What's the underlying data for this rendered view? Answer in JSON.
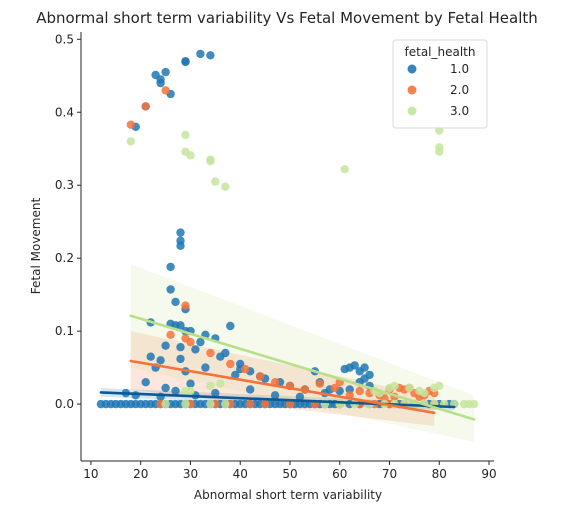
{
  "chart_data": {
    "type": "scatter",
    "title": "Abnormal short term variability Vs Fetal Movement by Fetal Health",
    "xlabel": "Abnormal short term variability",
    "ylabel": "Fetal Movement",
    "xlim": [
      8,
      91
    ],
    "ylim": [
      -0.078,
      0.51
    ],
    "xticks": [
      10,
      20,
      30,
      40,
      50,
      60,
      70,
      80,
      90
    ],
    "yticks": [
      0.0,
      0.1,
      0.2,
      0.3,
      0.4,
      0.5
    ],
    "ytick_labels": [
      "0.0",
      "0.1",
      "0.2",
      "0.3",
      "0.4",
      "0.5"
    ],
    "grid": false,
    "legend": {
      "title": "fetal_health",
      "placement": "top-right"
    },
    "series": [
      {
        "name": "1.0",
        "color": "#1f77b4",
        "points": [
          [
            21,
            0.408
          ],
          [
            19,
            0.38
          ],
          [
            23,
            0.451
          ],
          [
            24,
            0.445
          ],
          [
            24,
            0.44
          ],
          [
            25,
            0.455
          ],
          [
            26,
            0.425
          ],
          [
            29,
            0.469
          ],
          [
            29,
            0.47
          ],
          [
            32,
            0.48
          ],
          [
            34,
            0.478
          ],
          [
            28,
            0.235
          ],
          [
            28,
            0.224
          ],
          [
            28,
            0.217
          ],
          [
            26,
            0.188
          ],
          [
            26,
            0.157
          ],
          [
            27,
            0.14
          ],
          [
            29,
            0.13
          ],
          [
            22,
            0.112
          ],
          [
            26,
            0.11
          ],
          [
            27,
            0.108
          ],
          [
            28,
            0.108
          ],
          [
            38,
            0.107
          ],
          [
            29,
            0.1
          ],
          [
            30,
            0.1
          ],
          [
            33,
            0.095
          ],
          [
            35,
            0.09
          ],
          [
            32,
            0.085
          ],
          [
            25,
            0.08
          ],
          [
            28,
            0.078
          ],
          [
            31,
            0.075
          ],
          [
            37,
            0.07
          ],
          [
            22,
            0.065
          ],
          [
            24,
            0.06
          ],
          [
            28,
            0.062
          ],
          [
            36,
            0.065
          ],
          [
            40,
            0.055
          ],
          [
            23,
            0.05
          ],
          [
            29,
            0.045
          ],
          [
            33,
            0.05
          ],
          [
            40,
            0.048
          ],
          [
            42,
            0.045
          ],
          [
            45,
            0.035
          ],
          [
            44,
            0.038
          ],
          [
            39,
            0.04
          ],
          [
            48,
            0.03
          ],
          [
            50,
            0.025
          ],
          [
            53,
            0.02
          ],
          [
            55,
            0.045
          ],
          [
            61,
            0.048
          ],
          [
            62,
            0.05
          ],
          [
            63,
            0.053
          ],
          [
            64,
            0.045
          ],
          [
            65,
            0.05
          ],
          [
            66,
            0.04
          ],
          [
            65,
            0.035
          ],
          [
            58,
            0.02
          ],
          [
            60,
            0.018
          ],
          [
            21,
            0.03
          ],
          [
            25,
            0.022
          ],
          [
            30,
            0.028
          ],
          [
            35,
            0.015
          ],
          [
            42,
            0.02
          ],
          [
            47,
            0.012
          ],
          [
            52,
            0.01
          ],
          [
            57,
            0.015
          ],
          [
            62,
            0.02
          ],
          [
            64,
            0.03
          ],
          [
            66,
            0.025
          ],
          [
            56,
            0.03
          ],
          [
            17,
            0.015
          ],
          [
            19,
            0.012
          ],
          [
            24,
            0.01
          ],
          [
            27,
            0.018
          ],
          [
            31,
            0.012
          ],
          [
            12,
            0.0
          ],
          [
            13,
            0.0
          ],
          [
            14,
            0.0
          ],
          [
            15,
            0.0
          ],
          [
            16,
            0.0
          ],
          [
            17,
            0.0
          ],
          [
            18,
            0.0
          ],
          [
            19,
            0.0
          ],
          [
            20,
            0.0
          ],
          [
            21,
            0.0
          ],
          [
            22,
            0.0
          ],
          [
            23,
            0.0
          ],
          [
            24,
            0.0
          ],
          [
            25,
            0.0
          ],
          [
            26,
            0.0
          ],
          [
            27,
            0.0
          ],
          [
            28,
            0.0
          ],
          [
            29,
            0.0
          ],
          [
            30,
            0.0
          ],
          [
            31,
            0.0
          ],
          [
            32,
            0.0
          ],
          [
            33,
            0.0
          ],
          [
            34,
            0.0
          ],
          [
            35,
            0.0
          ],
          [
            36,
            0.0
          ],
          [
            37,
            0.0
          ],
          [
            38,
            0.0
          ],
          [
            39,
            0.0
          ],
          [
            40,
            0.0
          ],
          [
            41,
            0.0
          ],
          [
            42,
            0.0
          ],
          [
            43,
            0.0
          ],
          [
            44,
            0.0
          ],
          [
            45,
            0.0
          ],
          [
            46,
            0.0
          ],
          [
            47,
            0.0
          ],
          [
            48,
            0.0
          ],
          [
            49,
            0.0
          ],
          [
            50,
            0.0
          ],
          [
            51,
            0.0
          ],
          [
            52,
            0.0
          ],
          [
            53,
            0.0
          ],
          [
            54,
            0.0
          ],
          [
            55,
            0.0
          ],
          [
            56,
            0.0
          ],
          [
            57,
            0.0
          ],
          [
            58,
            0.0
          ],
          [
            59,
            0.0
          ],
          [
            60,
            0.0
          ],
          [
            62,
            0.0
          ],
          [
            64,
            0.0
          ],
          [
            66,
            0.0
          ],
          [
            68,
            0.0
          ],
          [
            70,
            0.0
          ],
          [
            72,
            0.0
          ],
          [
            75,
            0.0
          ],
          [
            78,
            0.0
          ],
          [
            80,
            0.0
          ],
          [
            82,
            0.0
          ],
          [
            83,
            0.0
          ]
        ]
      },
      {
        "name": "2.0",
        "color": "#f4733a",
        "points": [
          [
            18,
            0.383
          ],
          [
            21,
            0.408
          ],
          [
            25,
            0.43
          ],
          [
            29,
            0.135
          ],
          [
            26,
            0.095
          ],
          [
            29,
            0.09
          ],
          [
            30,
            0.085
          ],
          [
            34,
            0.07
          ],
          [
            38,
            0.055
          ],
          [
            41,
            0.048
          ],
          [
            44,
            0.038
          ],
          [
            47,
            0.03
          ],
          [
            50,
            0.025
          ],
          [
            53,
            0.02
          ],
          [
            56,
            0.028
          ],
          [
            59,
            0.022
          ],
          [
            60,
            0.03
          ],
          [
            62,
            0.012
          ],
          [
            64,
            0.018
          ],
          [
            66,
            0.015
          ],
          [
            68,
            0.012
          ],
          [
            70,
            0.02
          ],
          [
            72,
            0.022
          ],
          [
            73,
            0.02
          ],
          [
            74,
            0.022
          ],
          [
            75,
            0.015
          ],
          [
            76,
            0.01
          ],
          [
            77,
            0.012
          ],
          [
            78,
            0.018
          ],
          [
            79,
            0.015
          ],
          [
            71,
            0.01
          ],
          [
            69,
            0.008
          ],
          [
            24,
            0.0
          ],
          [
            30,
            0.0
          ],
          [
            35,
            0.0
          ],
          [
            38,
            0.0
          ],
          [
            42,
            0.0
          ],
          [
            45,
            0.0
          ],
          [
            50,
            0.0
          ],
          [
            55,
            0.0
          ],
          [
            60,
            0.0
          ],
          [
            64,
            0.0
          ],
          [
            67,
            0.0
          ],
          [
            70,
            0.0
          ],
          [
            73,
            0.0
          ],
          [
            75,
            0.0
          ],
          [
            77,
            0.0
          ],
          [
            79,
            0.0
          ]
        ]
      },
      {
        "name": "3.0",
        "color": "#c6e59c",
        "points": [
          [
            18,
            0.36
          ],
          [
            29,
            0.369
          ],
          [
            29,
            0.346
          ],
          [
            30,
            0.341
          ],
          [
            34,
            0.335
          ],
          [
            34,
            0.333
          ],
          [
            35,
            0.305
          ],
          [
            37,
            0.298
          ],
          [
            61,
            0.322
          ],
          [
            80,
            0.375
          ],
          [
            80,
            0.352
          ],
          [
            80,
            0.346
          ],
          [
            29,
            0.018
          ],
          [
            30,
            0.018
          ],
          [
            34,
            0.025
          ],
          [
            36,
            0.028
          ],
          [
            67,
            0.018
          ],
          [
            68,
            0.015
          ],
          [
            70,
            0.022
          ],
          [
            71,
            0.025
          ],
          [
            74,
            0.022
          ],
          [
            76,
            0.018
          ],
          [
            77,
            0.015
          ],
          [
            79,
            0.022
          ],
          [
            80,
            0.025
          ],
          [
            25,
            0.0
          ],
          [
            29,
            0.0
          ],
          [
            34,
            0.0
          ],
          [
            37,
            0.0
          ],
          [
            57,
            0.0
          ],
          [
            60,
            0.0
          ],
          [
            63,
            0.0
          ],
          [
            66,
            0.0
          ],
          [
            69,
            0.0
          ],
          [
            71,
            0.0
          ],
          [
            73,
            0.0
          ],
          [
            75,
            0.0
          ],
          [
            77,
            0.0
          ],
          [
            79,
            0.0
          ],
          [
            81,
            0.0
          ],
          [
            83,
            0.0
          ],
          [
            85,
            0.0
          ],
          [
            86,
            0.0
          ],
          [
            87,
            0.0
          ]
        ]
      }
    ],
    "regression": [
      {
        "series": "1.0",
        "x": [
          12,
          83
        ],
        "y": [
          0.016,
          -0.004
        ],
        "ci_upper": [
          0.022,
          0.001
        ],
        "ci_lower": [
          0.01,
          -0.009
        ],
        "line_color": "#0c5a94"
      },
      {
        "series": "2.0",
        "x": [
          18,
          79
        ],
        "y": [
          0.059,
          -0.012
        ],
        "ci_upper": [
          0.1,
          0.01
        ],
        "ci_lower": [
          0.02,
          -0.03
        ],
        "line_color": "#f4733a"
      },
      {
        "series": "3.0",
        "x": [
          18,
          87
        ],
        "y": [
          0.121,
          -0.021
        ],
        "ci_upper": [
          0.192,
          0.012
        ],
        "ci_lower": [
          0.05,
          -0.052
        ],
        "line_color": "#b8e08a"
      }
    ]
  }
}
